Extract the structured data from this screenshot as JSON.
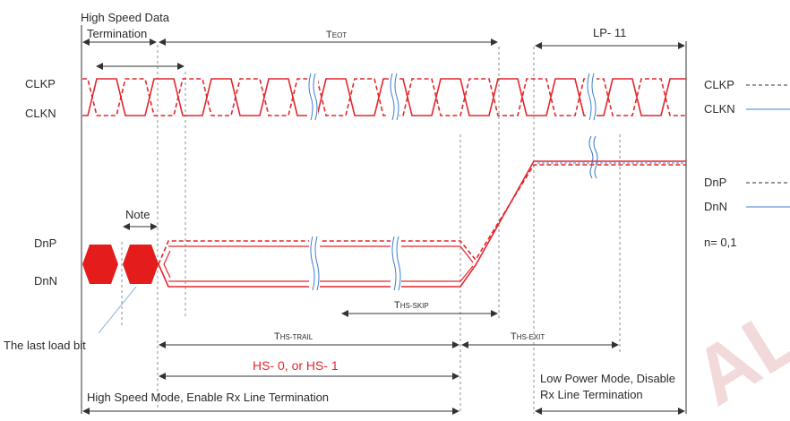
{
  "labels": {
    "hs_data_termination_line1": "High Speed Data",
    "hs_data_termination_line2": "Termination",
    "t_eot": "TEOT",
    "lp11": "LP- 11",
    "clkp": "CLKP",
    "clkn": "CLKN",
    "note": "Note",
    "dnp": "DnP",
    "dnn": "DnN",
    "last_load_bit": "The last load bit",
    "t_hs_skip": "THS-SKIP",
    "t_hs_trail": "THS-TRAIL",
    "t_hs_exit": "THS-EXIT",
    "hs0_hs1": "HS- 0, or HS- 1",
    "hs_mode": "High Speed Mode, Enable Rx Line Termination",
    "lp_mode_line1": "Low Power Mode, Disable",
    "lp_mode_line2": "Rx Line Termination"
  },
  "legend": {
    "clk": [
      {
        "name": "CLKP",
        "style": "dashed"
      },
      {
        "name": "CLKN",
        "style": "solid"
      }
    ],
    "data": [
      {
        "name": "DnP",
        "style": "dashed"
      },
      {
        "name": "DnN",
        "style": "solid"
      }
    ],
    "n_note": "n= 0,1"
  },
  "watermark": "AL",
  "colors": {
    "signal_red": "#e4262d",
    "line_blue": "#3a7fd0",
    "frame_gray": "#555555",
    "text": "#2b2b2b",
    "watermark": "#f2dada"
  }
}
